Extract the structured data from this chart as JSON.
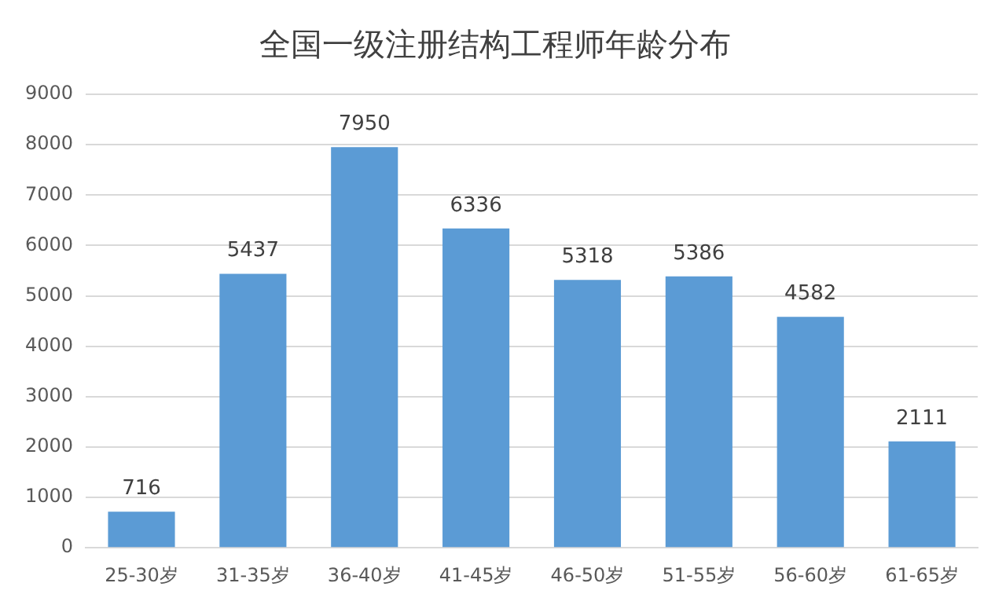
{
  "chart_data": {
    "type": "bar",
    "title": "全国一级注册结构工程师年龄分布",
    "categories": [
      "25-30岁",
      "31-35岁",
      "36-40岁",
      "41-45岁",
      "46-50岁",
      "51-55岁",
      "56-60岁",
      "61-65岁"
    ],
    "values": [
      716,
      5437,
      7950,
      6336,
      5318,
      5386,
      4582,
      2111
    ],
    "color": "#5b9bd5",
    "ylim": [
      0,
      9000
    ],
    "yticks": [
      0,
      1000,
      2000,
      3000,
      4000,
      5000,
      6000,
      7000,
      8000,
      9000
    ],
    "grid": "y",
    "legend": false,
    "data_labels": true
  }
}
